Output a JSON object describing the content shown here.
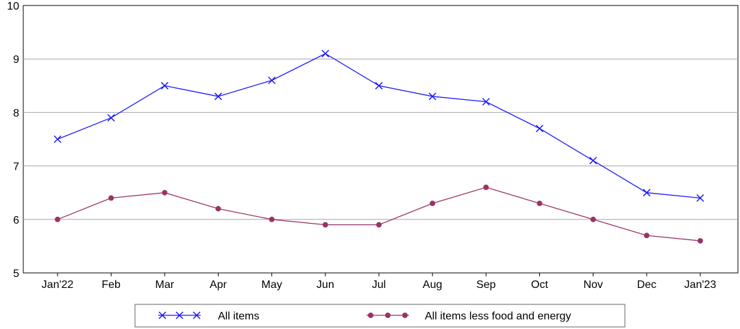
{
  "chart_data": {
    "type": "line",
    "title": "",
    "xlabel": "",
    "ylabel": "",
    "categories": [
      "Jan'22",
      "Feb",
      "Mar",
      "Apr",
      "May",
      "Jun",
      "Jul",
      "Aug",
      "Sep",
      "Oct",
      "Nov",
      "Dec",
      "Jan'23"
    ],
    "ylim": [
      5,
      10
    ],
    "yticks": [
      5,
      6,
      7,
      8,
      9,
      10
    ],
    "grid": "horizontal",
    "legend_position": "bottom",
    "series": [
      {
        "name": "All items",
        "color": "#1a1aff",
        "marker": "x",
        "values": [
          7.5,
          7.9,
          8.5,
          8.3,
          8.6,
          9.1,
          8.5,
          8.3,
          8.2,
          7.7,
          7.1,
          6.5,
          6.4
        ]
      },
      {
        "name": "All items less food and energy",
        "color": "#993366",
        "marker": "dot",
        "values": [
          6.0,
          6.4,
          6.5,
          6.2,
          6.0,
          5.9,
          5.9,
          6.3,
          6.6,
          6.3,
          6.0,
          5.7,
          5.6
        ]
      }
    ]
  }
}
